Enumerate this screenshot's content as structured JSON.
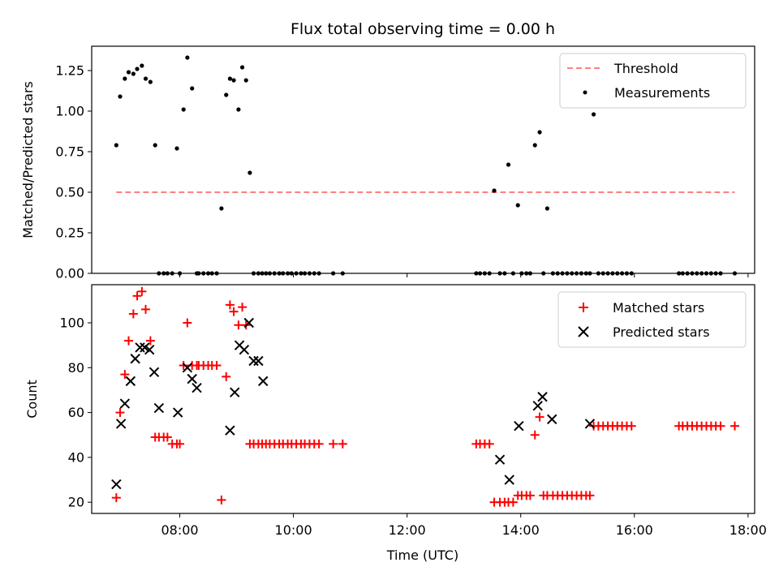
{
  "title": "Flux total observing time = 0.00 h",
  "colors": {
    "matched": "#ff0000",
    "predicted": "#000000",
    "threshold": "#ff8080",
    "measurement": "#000000"
  },
  "chart_data": [
    {
      "type": "scatter",
      "title": "Flux total observing time = 0.00 h",
      "xlabel": "",
      "ylabel": "Matched/Predicted stars",
      "xlim": [
        "06:27",
        "18:07"
      ],
      "ylim": [
        0,
        1.4
      ],
      "x_ticks": [
        "08:00",
        "10:00",
        "12:00",
        "14:00",
        "16:00",
        "18:00"
      ],
      "y_ticks": [
        "0.00",
        "0.25",
        "0.50",
        "0.75",
        "1.00",
        "1.25"
      ],
      "legend": "top-right",
      "series": [
        {
          "name": "Threshold",
          "style": "dashed-line",
          "x": [
            "06:53",
            "17:46"
          ],
          "y": [
            0.5,
            0.5
          ]
        },
        {
          "name": "Measurements",
          "style": "dot",
          "x": [
            "06:53",
            "06:57",
            "07:02",
            "07:06",
            "07:11",
            "07:15",
            "07:20",
            "07:24",
            "07:29",
            "07:34",
            "07:38",
            "07:43",
            "07:47",
            "07:52",
            "07:57",
            "08:00",
            "08:04",
            "08:08",
            "08:13",
            "08:18",
            "08:20",
            "08:25",
            "08:30",
            "08:34",
            "08:39",
            "08:44",
            "08:49",
            "08:53",
            "08:57",
            "09:02",
            "09:06",
            "09:10",
            "09:14",
            "09:18",
            "09:23",
            "09:27",
            "09:31",
            "09:35",
            "09:40",
            "09:45",
            "09:49",
            "09:54",
            "09:58",
            "10:03",
            "10:08",
            "10:12",
            "10:17",
            "10:22",
            "10:27",
            "10:42",
            "10:52",
            "13:13",
            "13:17",
            "13:22",
            "13:27",
            "13:32",
            "13:38",
            "13:43",
            "13:47",
            "13:52",
            "13:57",
            "14:01",
            "14:06",
            "14:10",
            "14:15",
            "14:20",
            "14:24",
            "14:28",
            "14:34",
            "14:39",
            "14:44",
            "14:49",
            "14:54",
            "14:59",
            "15:04",
            "15:09",
            "15:13",
            "15:17",
            "15:22",
            "15:27",
            "15:32",
            "15:37",
            "15:42",
            "15:47",
            "15:52",
            "15:57",
            "16:47",
            "16:51",
            "16:56",
            "17:01",
            "17:06",
            "17:11",
            "17:16",
            "17:21",
            "17:26",
            "17:31",
            "17:46"
          ],
          "y": [
            0.79,
            1.09,
            1.2,
            1.24,
            1.23,
            1.26,
            1.28,
            1.2,
            1.18,
            0.79,
            0,
            0,
            0,
            0,
            0.77,
            0,
            1.01,
            1.33,
            1.14,
            0,
            0,
            0,
            0,
            0,
            0,
            0.4,
            1.1,
            1.2,
            1.19,
            1.01,
            1.27,
            1.19,
            0.62,
            0,
            0,
            0,
            0,
            0,
            0,
            0,
            0,
            0,
            0,
            0,
            0,
            0,
            0,
            0,
            0,
            0,
            0,
            0,
            0,
            0,
            0,
            0.51,
            0,
            0,
            0.67,
            0,
            0.42,
            0,
            0,
            0,
            0.79,
            0.87,
            0,
            0.4,
            0,
            0,
            0,
            0,
            0,
            0,
            0,
            0,
            0,
            0.98,
            0,
            0,
            0,
            0,
            0,
            0,
            0,
            0,
            0,
            0,
            0,
            0,
            0,
            0,
            0,
            0,
            0,
            0,
            0
          ]
        }
      ]
    },
    {
      "type": "scatter",
      "xlabel": "Time (UTC)",
      "ylabel": "Count",
      "xlim": [
        "06:27",
        "18:07"
      ],
      "ylim": [
        15,
        117
      ],
      "x_ticks": [
        "08:00",
        "10:00",
        "12:00",
        "14:00",
        "16:00",
        "18:00"
      ],
      "y_ticks": [
        "20",
        "40",
        "60",
        "80",
        "100"
      ],
      "legend": "top-right",
      "series": [
        {
          "name": "Matched stars",
          "style": "plus",
          "x": [
            "06:53",
            "06:57",
            "07:02",
            "07:06",
            "07:11",
            "07:15",
            "07:20",
            "07:24",
            "07:29",
            "07:34",
            "07:38",
            "07:43",
            "07:47",
            "07:52",
            "07:57",
            "08:00",
            "08:04",
            "08:08",
            "08:13",
            "08:18",
            "08:20",
            "08:25",
            "08:30",
            "08:34",
            "08:39",
            "08:44",
            "08:49",
            "08:53",
            "08:57",
            "09:02",
            "09:06",
            "09:10",
            "09:14",
            "09:18",
            "09:23",
            "09:27",
            "09:31",
            "09:35",
            "09:40",
            "09:45",
            "09:49",
            "09:54",
            "09:58",
            "10:03",
            "10:08",
            "10:12",
            "10:17",
            "10:22",
            "10:27",
            "10:42",
            "10:52",
            "13:13",
            "13:17",
            "13:22",
            "13:27",
            "13:32",
            "13:38",
            "13:43",
            "13:47",
            "13:52",
            "13:57",
            "14:01",
            "14:06",
            "14:10",
            "14:15",
            "14:20",
            "14:24",
            "14:28",
            "14:34",
            "14:39",
            "14:44",
            "14:49",
            "14:54",
            "14:59",
            "15:04",
            "15:09",
            "15:13",
            "15:17",
            "15:22",
            "15:27",
            "15:32",
            "15:37",
            "15:42",
            "15:47",
            "15:52",
            "15:57",
            "16:47",
            "16:51",
            "16:56",
            "17:01",
            "17:06",
            "17:11",
            "17:16",
            "17:21",
            "17:26",
            "17:31",
            "17:46"
          ],
          "y": [
            22,
            60,
            77,
            92,
            104,
            112,
            114,
            106,
            92,
            49,
            49,
            49,
            49,
            46,
            46,
            46,
            81,
            100,
            81,
            81,
            81,
            81,
            81,
            81,
            81,
            21,
            76,
            108,
            105,
            99,
            107,
            99,
            46,
            46,
            46,
            46,
            46,
            46,
            46,
            46,
            46,
            46,
            46,
            46,
            46,
            46,
            46,
            46,
            46,
            46,
            46,
            46,
            46,
            46,
            46,
            20,
            20,
            20,
            20,
            20,
            23,
            23,
            23,
            23,
            50,
            58,
            23,
            23,
            23,
            23,
            23,
            23,
            23,
            23,
            23,
            23,
            23,
            54,
            54,
            54,
            54,
            54,
            54,
            54,
            54,
            54,
            54,
            54,
            54,
            54,
            54,
            54,
            54,
            54,
            54,
            54,
            54
          ]
        },
        {
          "name": "Predicted stars",
          "style": "x",
          "x": [
            "06:53",
            "06:58",
            "07:02",
            "07:08",
            "07:13",
            "07:18",
            "07:23",
            "07:28",
            "07:33",
            "07:38",
            "07:58",
            "08:08",
            "08:13",
            "08:18",
            "08:53",
            "08:58",
            "09:03",
            "09:08",
            "09:13",
            "09:18",
            "09:23",
            "09:28",
            "13:38",
            "13:48",
            "13:58",
            "14:18",
            "14:23",
            "14:33",
            "15:13"
          ],
          "y": [
            28,
            55,
            64,
            74,
            84,
            89,
            89,
            88,
            78,
            62,
            60,
            80,
            75,
            71,
            52,
            69,
            90,
            88,
            100,
            83,
            83,
            74,
            39,
            30,
            54,
            63,
            67,
            57,
            55
          ]
        }
      ]
    }
  ]
}
